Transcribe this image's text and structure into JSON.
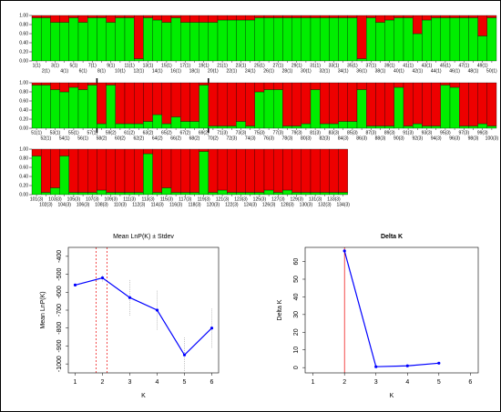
{
  "chart_data": [
    {
      "type": "bar",
      "categories": [
        "1(1)",
        "2(1)",
        "3(1)",
        "4(1)",
        "5(1)",
        "6(1)",
        "7(1)",
        "8(1)",
        "9(1)",
        "10(1)",
        "11(1)",
        "12(1)",
        "13(1)",
        "14(1)",
        "15(1)",
        "16(1)",
        "17(1)",
        "18(1)",
        "19(1)",
        "20(1)",
        "21(1)",
        "22(1)",
        "23(1)",
        "24(1)",
        "25(1)",
        "26(1)",
        "27(1)",
        "28(1)",
        "29(1)",
        "30(1)",
        "31(1)",
        "32(1)",
        "33(1)",
        "34(1)",
        "35(1)",
        "36(1)",
        "37(1)",
        "38(1)",
        "39(1)",
        "40(1)",
        "41(1)",
        "42(1)",
        "43(1)",
        "44(1)",
        "45(1)",
        "46(1)",
        "47(1)",
        "48(1)",
        "49(1)",
        "50(1)"
      ],
      "series": [
        {
          "color": "#00ee00",
          "values": [
            0.95,
            0.95,
            0.85,
            0.85,
            0.95,
            0.85,
            0.95,
            0.95,
            0.85,
            0.95,
            0.95,
            0.05,
            0.95,
            0.9,
            0.85,
            0.95,
            0.85,
            0.85,
            0.85,
            0.85,
            0.9,
            0.9,
            0.9,
            0.9,
            0.95,
            0.95,
            0.95,
            0.95,
            0.95,
            0.95,
            0.95,
            0.95,
            0.95,
            0.95,
            0.95,
            0.05,
            0.95,
            0.85,
            0.9,
            0.95,
            0.95,
            0.6,
            0.9,
            0.95,
            0.95,
            0.95,
            0.95,
            0.95,
            0.55,
            0.95
          ]
        },
        {
          "color": "#ee0000",
          "values": [
            0.05,
            0.05,
            0.15,
            0.15,
            0.05,
            0.15,
            0.05,
            0.05,
            0.15,
            0.05,
            0.05,
            0.95,
            0.05,
            0.1,
            0.15,
            0.05,
            0.15,
            0.15,
            0.15,
            0.15,
            0.1,
            0.1,
            0.1,
            0.1,
            0.05,
            0.05,
            0.05,
            0.05,
            0.05,
            0.05,
            0.05,
            0.05,
            0.05,
            0.05,
            0.05,
            0.95,
            0.05,
            0.15,
            0.1,
            0.05,
            0.05,
            0.4,
            0.1,
            0.05,
            0.05,
            0.05,
            0.05,
            0.05,
            0.45,
            0.05
          ]
        }
      ],
      "ylim": [
        0,
        1
      ],
      "yticks": [
        {
          "value": 0,
          "label": "0.00"
        },
        {
          "value": 0.2,
          "label": "0.20"
        },
        {
          "value": 0.4,
          "label": "0.40"
        },
        {
          "value": 0.6,
          "label": "0.60"
        },
        {
          "value": 0.8,
          "label": "0.80"
        },
        {
          "value": 1,
          "label": "1.00"
        }
      ]
    },
    {
      "type": "bar",
      "categories": [
        "51(1)",
        "52(1)",
        "53(1)",
        "54(1)",
        "55(1)",
        "56(1)",
        "57(1)",
        "58(2)",
        "59(2)",
        "60(2)",
        "61(2)",
        "62(2)",
        "63(2)",
        "64(2)",
        "65(2)",
        "66(2)",
        "67(2)",
        "68(2)",
        "69(2)",
        "70(2)",
        "71(3)",
        "72(3)",
        "73(3)",
        "74(3)",
        "75(3)",
        "76(3)",
        "77(3)",
        "78(3)",
        "79(3)",
        "80(3)",
        "81(3)",
        "82(3)",
        "83(3)",
        "84(3)",
        "85(3)",
        "86(3)",
        "87(3)",
        "88(3)",
        "89(3)",
        "90(3)",
        "91(3)",
        "92(3)",
        "93(3)",
        "94(3)",
        "95(3)",
        "96(3)",
        "97(3)",
        "98(3)",
        "99(3)",
        "100(3)"
      ],
      "series": [
        {
          "color": "#00ee00",
          "values": [
            0.95,
            0.95,
            0.85,
            0.8,
            0.9,
            0.85,
            0.95,
            0.1,
            0.95,
            0.1,
            0.1,
            0.1,
            0.15,
            0.3,
            0.1,
            0.25,
            0.15,
            0.15,
            0.95,
            0.05,
            0.05,
            0.05,
            0.15,
            0.05,
            0.8,
            0.85,
            0.85,
            0.05,
            0.05,
            0.1,
            0.85,
            0.1,
            0.1,
            0.15,
            0.15,
            0.85,
            0.05,
            0.05,
            0.05,
            0.9,
            0.05,
            0.1,
            0.05,
            0.05,
            0.95,
            0.9,
            0.05,
            0.05,
            0.1,
            0.05
          ]
        },
        {
          "color": "#ee0000",
          "values": [
            0.05,
            0.05,
            0.15,
            0.2,
            0.1,
            0.15,
            0.05,
            0.9,
            0.05,
            0.9,
            0.9,
            0.9,
            0.85,
            0.7,
            0.9,
            0.75,
            0.85,
            0.85,
            0.05,
            0.95,
            0.95,
            0.95,
            0.85,
            0.95,
            0.2,
            0.15,
            0.15,
            0.95,
            0.95,
            0.9,
            0.15,
            0.9,
            0.9,
            0.85,
            0.85,
            0.15,
            0.95,
            0.95,
            0.95,
            0.1,
            0.95,
            0.9,
            0.95,
            0.95,
            0.05,
            0.1,
            0.95,
            0.95,
            0.9,
            0.95
          ]
        }
      ],
      "ylim": [
        0,
        1
      ],
      "yticks": [
        {
          "value": 0,
          "label": "0.00"
        },
        {
          "value": 0.2,
          "label": "0.20"
        },
        {
          "value": 0.4,
          "label": "0.40"
        },
        {
          "value": 0.6,
          "label": "0.60"
        },
        {
          "value": 0.8,
          "label": "0.80"
        },
        {
          "value": 1,
          "label": "1.00"
        }
      ]
    },
    {
      "type": "bar",
      "categories": [
        "101(3)",
        "102(3)",
        "103(3)",
        "104(3)",
        "105(3)",
        "106(3)",
        "107(3)",
        "108(3)",
        "109(3)",
        "110(3)",
        "111(3)",
        "112(3)",
        "113(3)",
        "114(3)",
        "115(3)",
        "116(3)",
        "117(3)",
        "118(3)",
        "119(3)",
        "120(3)",
        "121(3)",
        "122(3)",
        "123(3)",
        "124(3)",
        "125(3)",
        "126(3)",
        "127(3)",
        "128(3)",
        "129(3)",
        "130(3)",
        "131(3)",
        "132(3)",
        "133(3)",
        "134(3)"
      ],
      "series": [
        {
          "color": "#00ee00",
          "values": [
            0.85,
            0.05,
            0.15,
            0.85,
            0.05,
            0.05,
            0.05,
            0.1,
            0.05,
            0.05,
            0.05,
            0.05,
            0.9,
            0.05,
            0.15,
            0.05,
            0.05,
            0.05,
            0.95,
            0.05,
            0.1,
            0.05,
            0.05,
            0.05,
            0.05,
            0.1,
            0.05,
            0.1,
            0.05,
            0.05,
            0.05,
            0.05,
            0.05,
            0.05
          ]
        },
        {
          "color": "#ee0000",
          "values": [
            0.15,
            0.95,
            0.85,
            0.15,
            0.95,
            0.95,
            0.95,
            0.9,
            0.95,
            0.95,
            0.95,
            0.95,
            0.1,
            0.95,
            0.85,
            0.95,
            0.95,
            0.95,
            0.05,
            0.95,
            0.9,
            0.95,
            0.95,
            0.95,
            0.95,
            0.9,
            0.95,
            0.9,
            0.95,
            0.95,
            0.95,
            0.95,
            0.95,
            0.95
          ]
        }
      ],
      "ylim": [
        0,
        1
      ],
      "yticks": [
        {
          "value": 0,
          "label": "0.00"
        },
        {
          "value": 0.2,
          "label": "0.20"
        },
        {
          "value": 0.4,
          "label": "0.40"
        },
        {
          "value": 0.6,
          "label": "0.60"
        },
        {
          "value": 0.8,
          "label": "0.80"
        },
        {
          "value": 1,
          "label": "1.00"
        }
      ]
    },
    {
      "type": "line",
      "title": "Mean LnP(K) ± Stdev",
      "xlabel": "K",
      "ylabel": "Mean LnP(K)",
      "x": [
        1,
        2,
        3,
        4,
        5,
        6
      ],
      "values": [
        -560,
        -520,
        -630,
        -700,
        -950,
        -800
      ],
      "errors": [
        0,
        20,
        100,
        110,
        100,
        110
      ],
      "color": "#0000ff",
      "xlim": [
        0.75,
        6.25
      ],
      "ylim": [
        -1050,
        -350
      ],
      "xticks": [
        1,
        2,
        3,
        4,
        5,
        6
      ],
      "yticks": [
        -1000,
        -900,
        -800,
        -700,
        -600,
        -500,
        -400
      ]
    },
    {
      "type": "line",
      "title": "Delta K",
      "xlabel": "K",
      "ylabel": "Delta K",
      "x": [
        2,
        3,
        4,
        5
      ],
      "values": [
        66,
        0.5,
        1,
        2.5
      ],
      "color": "#0000ff",
      "xlim": [
        0.75,
        6.25
      ],
      "ylim": [
        -3,
        68
      ],
      "xticks": [
        1,
        2,
        3,
        4,
        5,
        6
      ],
      "yticks": [
        0,
        10,
        20,
        30,
        40,
        50,
        60
      ]
    }
  ]
}
